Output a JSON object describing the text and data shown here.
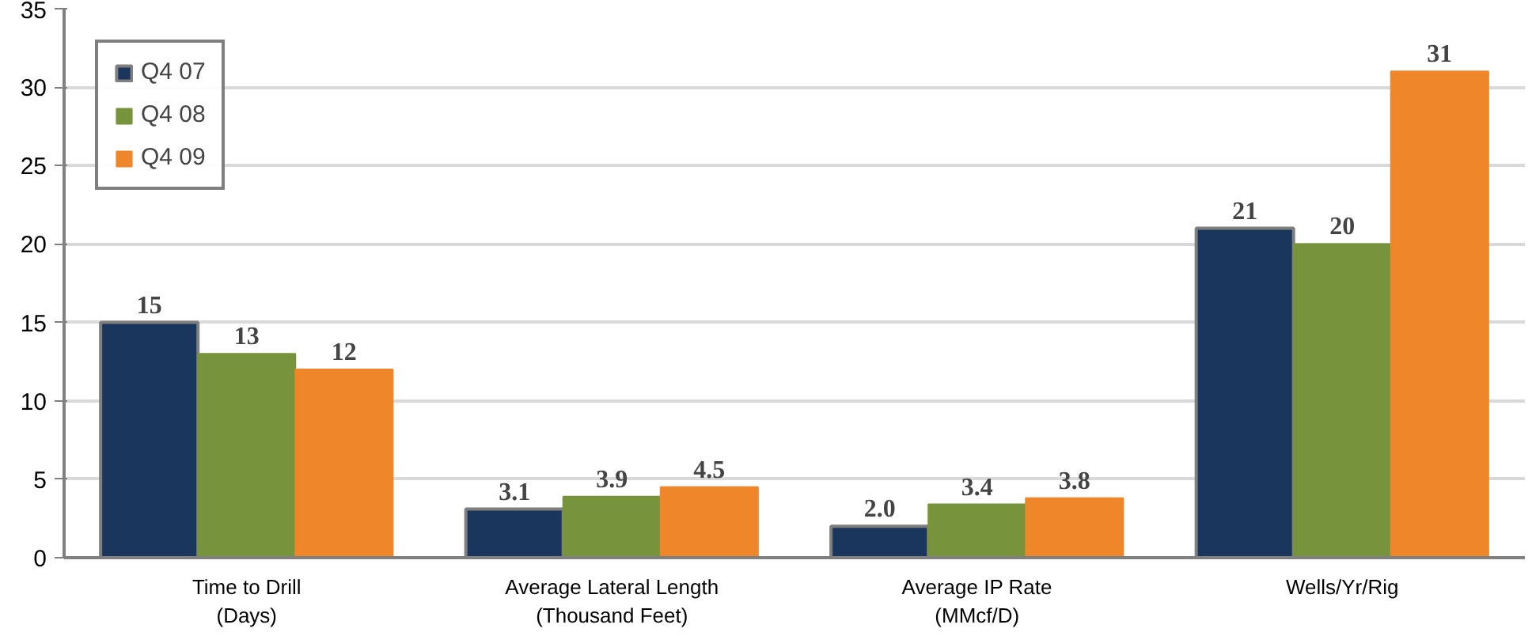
{
  "chart_data": {
    "type": "bar",
    "categories": [
      "Time to Drill\n(Days)",
      "Average Lateral Length\n(Thousand Feet)",
      "Average IP Rate\n(MMcf/D)",
      "Wells/Yr/Rig"
    ],
    "series": [
      {
        "name": "Q4 07",
        "color": "#1b365d",
        "values": [
          15,
          3.1,
          2.0,
          21
        ],
        "value_labels": [
          "15",
          "3.1",
          "2.0",
          "21"
        ]
      },
      {
        "name": "Q4 08",
        "color": "#77933c",
        "values": [
          13,
          3.9,
          3.4,
          20
        ],
        "value_labels": [
          "13",
          "3.9",
          "3.4",
          "20"
        ]
      },
      {
        "name": "Q4 09",
        "color": "#f0862a",
        "values": [
          12,
          4.5,
          3.8,
          31
        ],
        "value_labels": [
          "12",
          "4.5",
          "3.8",
          "31"
        ]
      }
    ],
    "ylim": [
      0,
      35
    ],
    "yticks": [
      0,
      5,
      10,
      15,
      20,
      25,
      30,
      35
    ],
    "grid": "y",
    "legend": "top left"
  }
}
